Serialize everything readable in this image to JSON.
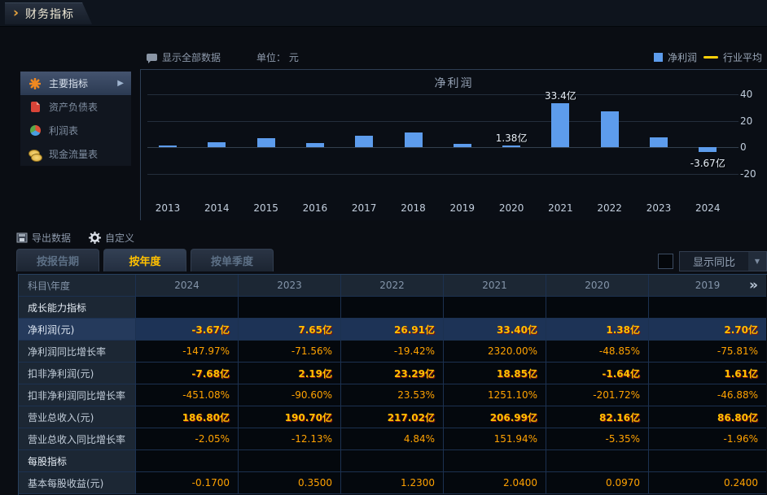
{
  "titlebar": {
    "tab": "财务指标"
  },
  "chart_header": {
    "show_all": "显示全部数据",
    "unit": "单位： 元"
  },
  "legend": {
    "series1": "净利润",
    "series2": "行业平均",
    "series1_color": "#5d9cec",
    "series2_color": "#ffd10a"
  },
  "sidebar": {
    "items": [
      {
        "label": "主要指标",
        "icon": "asterisk-icon",
        "active": true
      },
      {
        "label": "资产负债表",
        "icon": "document-icon",
        "active": false
      },
      {
        "label": "利润表",
        "icon": "pie-icon",
        "active": false
      },
      {
        "label": "现金流量表",
        "icon": "coins-icon",
        "active": false
      }
    ]
  },
  "chart_data": {
    "type": "bar",
    "title": "净利润",
    "categories": [
      "2013",
      "2014",
      "2015",
      "2016",
      "2017",
      "2018",
      "2019",
      "2020",
      "2021",
      "2022",
      "2023",
      "2024"
    ],
    "values": [
      1.5,
      3.5,
      6.5,
      3.3,
      8.5,
      11.0,
      2.7,
      1.38,
      33.4,
      26.91,
      7.65,
      -3.67
    ],
    "unit": "亿",
    "bar_color": "#5d9cec",
    "ylim": [
      -30,
      50
    ],
    "yticks": [
      40,
      20,
      0,
      -20
    ],
    "grid": true,
    "legend_position": "top-right",
    "legend_entries": [
      "净利润",
      "行业平均"
    ],
    "point_labels": [
      {
        "index": 7,
        "text": "1.38亿"
      },
      {
        "index": 8,
        "text": "33.4亿"
      },
      {
        "index": 11,
        "text": "-3.67亿"
      }
    ]
  },
  "toolbar": {
    "export": "导出数据",
    "custom": "自定义"
  },
  "tabs": [
    {
      "label": "按报告期",
      "active": false
    },
    {
      "label": "按年度",
      "active": true
    },
    {
      "label": "按单季度",
      "active": false
    }
  ],
  "controls": {
    "show_yoy": "显示同比"
  },
  "table": {
    "corner": "科目\\年度",
    "years": [
      "2024",
      "2023",
      "2022",
      "2021",
      "2020",
      "2019"
    ],
    "more_icon": "chevrons-right-icon",
    "rows": [
      {
        "type": "section",
        "label": "成长能力指标",
        "values": [
          "",
          "",
          "",
          "",
          "",
          ""
        ]
      },
      {
        "type": "data",
        "style": "yi",
        "highlight": true,
        "label": "净利润(元)",
        "values": [
          "-3.67亿",
          "7.65亿",
          "26.91亿",
          "33.40亿",
          "1.38亿",
          "2.70亿"
        ]
      },
      {
        "type": "data",
        "style": "pct",
        "highlight": false,
        "label": "净利润同比增长率",
        "values": [
          "-147.97%",
          "-71.56%",
          "-19.42%",
          "2320.00%",
          "-48.85%",
          "-75.81%"
        ]
      },
      {
        "type": "data",
        "style": "yi",
        "highlight": false,
        "label": "扣非净利润(元)",
        "values": [
          "-7.68亿",
          "2.19亿",
          "23.29亿",
          "18.85亿",
          "-1.64亿",
          "1.61亿"
        ]
      },
      {
        "type": "data",
        "style": "pct",
        "highlight": false,
        "label": "扣非净利润同比增长率",
        "values": [
          "-451.08%",
          "-90.60%",
          "23.53%",
          "1251.10%",
          "-201.72%",
          "-46.88%"
        ]
      },
      {
        "type": "data",
        "style": "yi",
        "highlight": false,
        "label": "营业总收入(元)",
        "values": [
          "186.80亿",
          "190.70亿",
          "217.02亿",
          "206.99亿",
          "82.16亿",
          "86.80亿"
        ]
      },
      {
        "type": "data",
        "style": "pct",
        "highlight": false,
        "label": "营业总收入同比增长率",
        "values": [
          "-2.05%",
          "-12.13%",
          "4.84%",
          "151.94%",
          "-5.35%",
          "-1.96%"
        ]
      },
      {
        "type": "section",
        "label": "每股指标",
        "values": [
          "",
          "",
          "",
          "",
          "",
          ""
        ]
      },
      {
        "type": "data",
        "style": "pct",
        "highlight": false,
        "label": "基本每股收益(元)",
        "values": [
          "-0.1700",
          "0.3500",
          "1.2300",
          "2.0400",
          "0.0970",
          "0.2400"
        ]
      }
    ]
  }
}
